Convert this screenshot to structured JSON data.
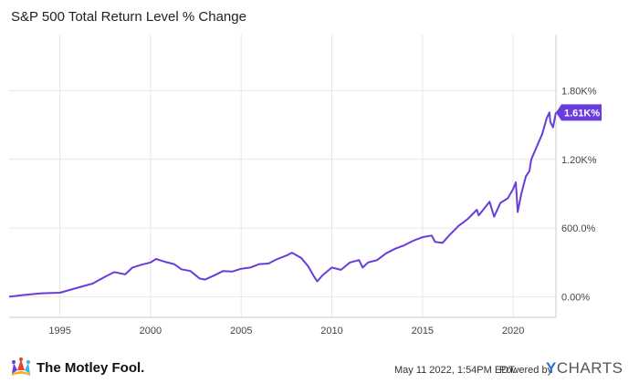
{
  "chart_data": {
    "type": "line",
    "title": "S&P 500 Total Return Level % Change",
    "xlabel": "",
    "ylabel": "",
    "xlim": [
      1992.2,
      2022.36
    ],
    "ylim": [
      -180,
      2290
    ],
    "grid": true,
    "x_ticks": [
      {
        "value": 1995,
        "label": "1995"
      },
      {
        "value": 2000,
        "label": "2000"
      },
      {
        "value": 2005,
        "label": "2005"
      },
      {
        "value": 2010,
        "label": "2010"
      },
      {
        "value": 2015,
        "label": "2015"
      },
      {
        "value": 2020,
        "label": "2020"
      }
    ],
    "y_ticks": [
      {
        "value": 0,
        "label": "0.00%"
      },
      {
        "value": 600,
        "label": "600.0%"
      },
      {
        "value": 1200,
        "label": "1.20K%"
      },
      {
        "value": 1800,
        "label": "1.80K%"
      }
    ],
    "last_value_label": "1.61K%",
    "series": [
      {
        "name": "",
        "color": "#6a3cdc",
        "points": [
          [
            1992.2,
            0
          ],
          [
            1993.0,
            15
          ],
          [
            1994.0,
            30
          ],
          [
            1995.0,
            35
          ],
          [
            1996.0,
            80
          ],
          [
            1996.8,
            115
          ],
          [
            1997.5,
            175
          ],
          [
            1998.0,
            215
          ],
          [
            1998.6,
            195
          ],
          [
            1999.0,
            255
          ],
          [
            1999.5,
            280
          ],
          [
            2000.0,
            300
          ],
          [
            2000.3,
            330
          ],
          [
            2000.8,
            305
          ],
          [
            2001.3,
            285
          ],
          [
            2001.7,
            240
          ],
          [
            2002.2,
            225
          ],
          [
            2002.7,
            160
          ],
          [
            2003.0,
            150
          ],
          [
            2003.5,
            185
          ],
          [
            2004.0,
            225
          ],
          [
            2004.5,
            220
          ],
          [
            2005.0,
            245
          ],
          [
            2005.5,
            255
          ],
          [
            2006.0,
            285
          ],
          [
            2006.5,
            290
          ],
          [
            2007.0,
            330
          ],
          [
            2007.5,
            360
          ],
          [
            2007.8,
            385
          ],
          [
            2008.3,
            340
          ],
          [
            2008.7,
            265
          ],
          [
            2009.0,
            180
          ],
          [
            2009.2,
            135
          ],
          [
            2009.5,
            190
          ],
          [
            2010.0,
            255
          ],
          [
            2010.5,
            235
          ],
          [
            2011.0,
            300
          ],
          [
            2011.5,
            320
          ],
          [
            2011.7,
            255
          ],
          [
            2012.0,
            300
          ],
          [
            2012.5,
            320
          ],
          [
            2013.0,
            380
          ],
          [
            2013.5,
            420
          ],
          [
            2014.0,
            450
          ],
          [
            2014.5,
            490
          ],
          [
            2015.0,
            520
          ],
          [
            2015.5,
            535
          ],
          [
            2015.7,
            480
          ],
          [
            2016.1,
            470
          ],
          [
            2016.5,
            540
          ],
          [
            2017.0,
            620
          ],
          [
            2017.5,
            680
          ],
          [
            2018.0,
            760
          ],
          [
            2018.1,
            710
          ],
          [
            2018.7,
            830
          ],
          [
            2018.95,
            700
          ],
          [
            2019.3,
            820
          ],
          [
            2019.7,
            860
          ],
          [
            2020.0,
            940
          ],
          [
            2020.15,
            1000
          ],
          [
            2020.25,
            740
          ],
          [
            2020.45,
            900
          ],
          [
            2020.7,
            1050
          ],
          [
            2020.9,
            1100
          ],
          [
            2021.0,
            1200
          ],
          [
            2021.3,
            1310
          ],
          [
            2021.6,
            1420
          ],
          [
            2021.85,
            1560
          ],
          [
            2022.0,
            1610
          ],
          [
            2022.05,
            1530
          ],
          [
            2022.2,
            1480
          ],
          [
            2022.36,
            1610
          ]
        ]
      }
    ]
  },
  "footer": {
    "brand": "The Motley Fool.",
    "timestamp": "May 11 2022, 1:54PM EDT.",
    "powered_by": "Powered by",
    "provider_y": "Y",
    "provider_rest": "CHARTS"
  }
}
